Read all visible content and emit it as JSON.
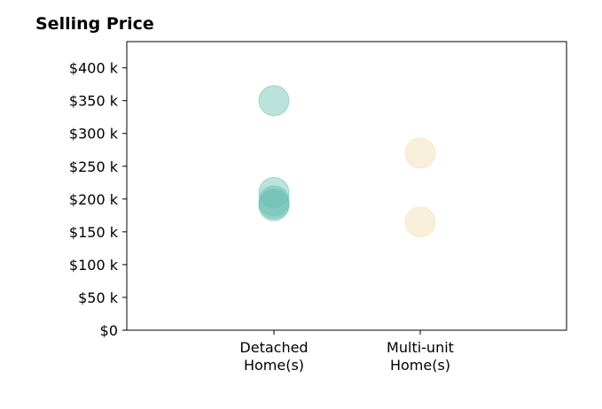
{
  "chart_data": {
    "type": "scatter",
    "title": "Selling Price",
    "xlabel": "",
    "ylabel": "",
    "categories": [
      "Detached\nHome(s)",
      "Multi-unit\nHome(s)"
    ],
    "y_tick_labels": [
      "$0",
      "$50 k",
      "$100 k",
      "$150 k",
      "$200 k",
      "$250 k",
      "$300 k",
      "$350 k",
      "$400 k"
    ],
    "y_ticks": [
      0,
      50000,
      100000,
      150000,
      200000,
      250000,
      300000,
      350000,
      400000
    ],
    "ylim": [
      0,
      440000
    ],
    "grid": false,
    "legend": "none",
    "series": [
      {
        "category": "Detached\nHome(s)",
        "color": "#6bbfb2",
        "values": [
          350000,
          210000,
          197000,
          193000,
          190000
        ]
      },
      {
        "category": "Multi-unit\nHome(s)",
        "color": "#f2deb0",
        "values": [
          270000,
          165000
        ]
      }
    ]
  }
}
